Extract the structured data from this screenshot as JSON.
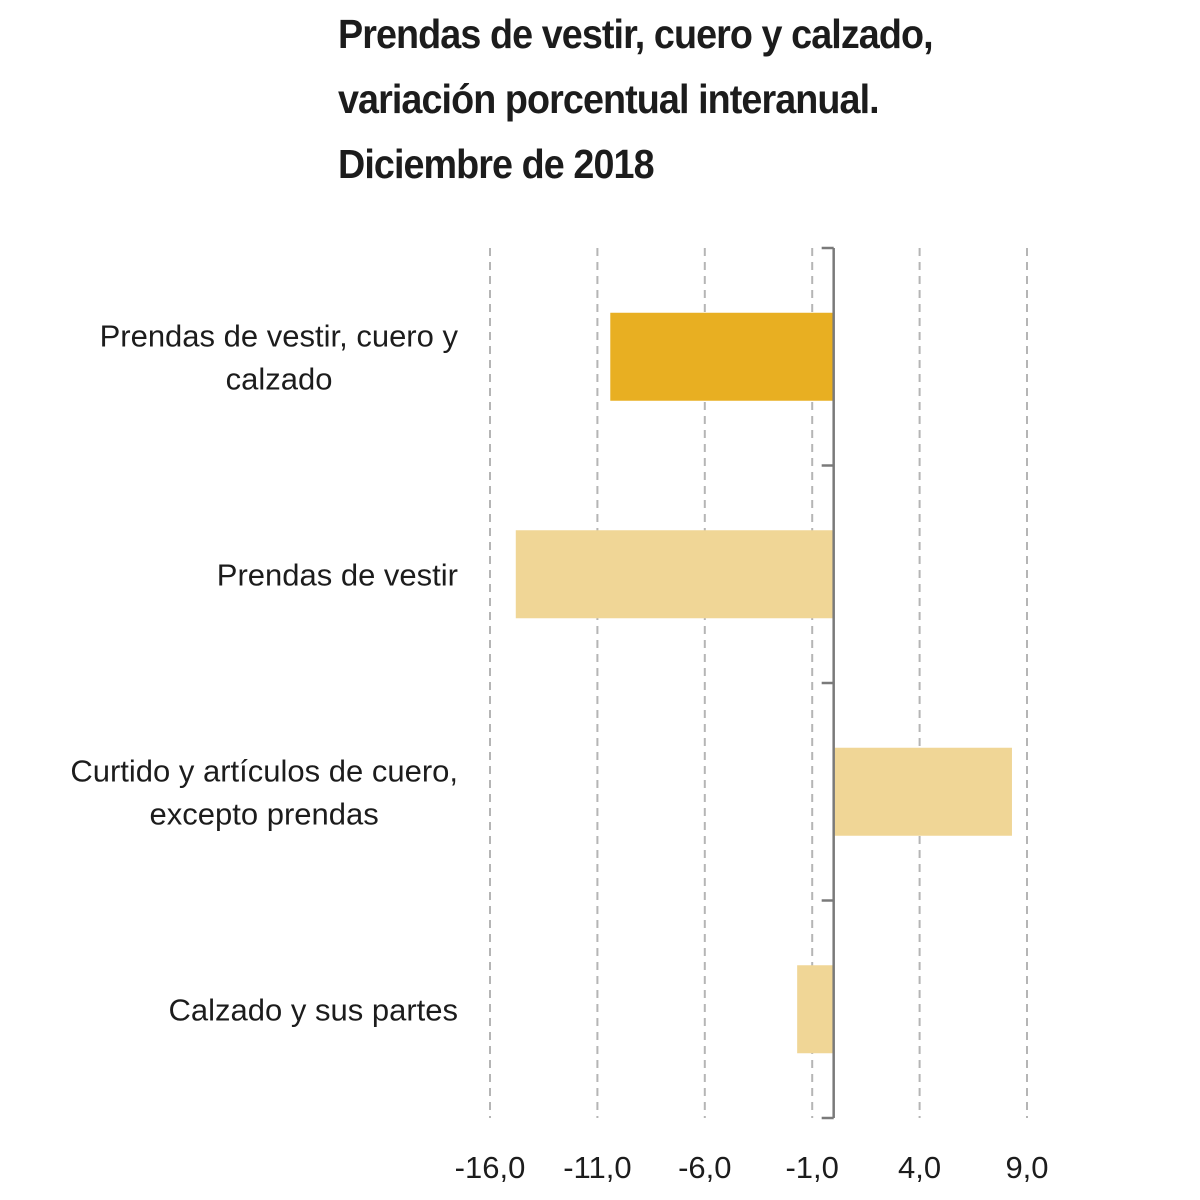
{
  "chart_data": {
    "type": "bar",
    "orientation": "horizontal",
    "title_lines": [
      "Prendas de vestir, cuero y calzado,",
      "variación porcentual interanual.",
      "Diciembre de 2018"
    ],
    "categories": [
      [
        "Prendas de vestir, cuero y",
        "calzado"
      ],
      [
        "Prendas de vestir"
      ],
      [
        "Curtido y artículos de cuero,",
        "excepto prendas"
      ],
      [
        "Calzado y sus partes"
      ]
    ],
    "values": [
      -10.4,
      -14.8,
      8.3,
      -1.7
    ],
    "highlight_index": 0,
    "xlim": [
      -16.0,
      9.0
    ],
    "xticks": [
      -16.0,
      -11.0,
      -6.0,
      -1.0,
      4.0,
      9.0
    ],
    "xtick_labels": [
      "-16,0",
      "-11,0",
      "-6,0",
      "-1,0",
      "4,0",
      "9,0"
    ],
    "grid": "vertical-dashed",
    "colors": {
      "highlight": "#E8AF22",
      "bar": "#F0D696",
      "grid": "#b5b5b5",
      "axis": "#7a7a7a",
      "text": "#1c1c1c"
    }
  }
}
